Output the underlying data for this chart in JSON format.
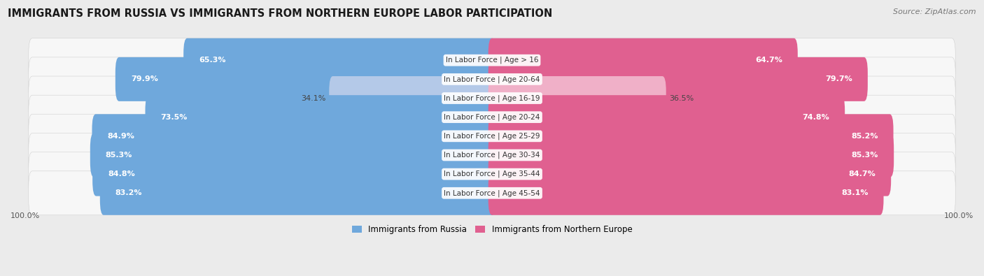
{
  "title": "IMMIGRANTS FROM RUSSIA VS IMMIGRANTS FROM NORTHERN EUROPE LABOR PARTICIPATION",
  "source": "Source: ZipAtlas.com",
  "categories": [
    "In Labor Force | Age > 16",
    "In Labor Force | Age 20-64",
    "In Labor Force | Age 16-19",
    "In Labor Force | Age 20-24",
    "In Labor Force | Age 25-29",
    "In Labor Force | Age 30-34",
    "In Labor Force | Age 35-44",
    "In Labor Force | Age 45-54"
  ],
  "russia_values": [
    65.3,
    79.9,
    34.1,
    73.5,
    84.9,
    85.3,
    84.8,
    83.2
  ],
  "northern_values": [
    64.7,
    79.7,
    36.5,
    74.8,
    85.2,
    85.3,
    84.7,
    83.1
  ],
  "russia_color_full": "#6fa8dc",
  "russia_color_light": "#b4c9e8",
  "northern_color_full": "#e06090",
  "northern_color_light": "#f0b0c8",
  "label_russia": "Immigrants from Russia",
  "label_northern": "Immigrants from Northern Europe",
  "background_color": "#ebebeb",
  "bar_background": "#f7f7f7",
  "row_bg_edge": "#d0d0d0",
  "max_value": 100.0,
  "title_fontsize": 10.5,
  "source_fontsize": 8,
  "bar_label_fontsize": 8,
  "category_fontsize": 7.5,
  "threshold": 50
}
